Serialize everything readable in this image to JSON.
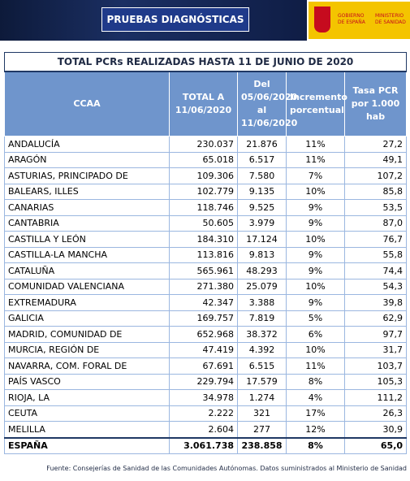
{
  "header": {
    "title": "PRUEBAS DIAGNÓSTICAS",
    "logo_left": "GOBIERNO DE ESPAÑA",
    "logo_right": "MINISTERIO DE SANIDAD"
  },
  "table": {
    "title": "TOTAL PCRs REALIZADAS HASTA 11 DE JUNIO DE 2020",
    "columns": [
      "CCAA",
      "TOTAL A 11/06/2020",
      "Del 05/06/2020 al 11/06/2020",
      "Incremento porcentual",
      "Tasa PCR por 1.000 hab"
    ],
    "rows": [
      [
        "ANDALUCÍA",
        "230.037",
        "21.876",
        "11%",
        "27,2"
      ],
      [
        "ARAGÓN",
        "65.018",
        "6.517",
        "11%",
        "49,1"
      ],
      [
        "ASTURIAS, PRINCIPADO DE",
        "109.306",
        "7.580",
        "7%",
        "107,2"
      ],
      [
        "BALEARS, ILLES",
        "102.779",
        "9.135",
        "10%",
        "85,8"
      ],
      [
        "CANARIAS",
        "118.746",
        "9.525",
        "9%",
        "53,5"
      ],
      [
        "CANTABRIA",
        "50.605",
        "3.979",
        "9%",
        "87,0"
      ],
      [
        "CASTILLA Y LEÓN",
        "184.310",
        "17.124",
        "10%",
        "76,7"
      ],
      [
        "CASTILLA-LA MANCHA",
        "113.816",
        "9.813",
        "9%",
        "55,8"
      ],
      [
        "CATALUÑA",
        "565.961",
        "48.293",
        "9%",
        "74,4"
      ],
      [
        "COMUNIDAD VALENCIANA",
        "271.380",
        "25.079",
        "10%",
        "54,3"
      ],
      [
        "EXTREMADURA",
        "42.347",
        "3.388",
        "9%",
        "39,8"
      ],
      [
        "GALICIA",
        "169.757",
        "7.819",
        "5%",
        "62,9"
      ],
      [
        "MADRID, COMUNIDAD DE",
        "652.968",
        "38.372",
        "6%",
        "97,7"
      ],
      [
        "MURCIA, REGIÓN DE",
        "47.419",
        "4.392",
        "10%",
        "31,7"
      ],
      [
        "NAVARRA, COM. FORAL DE",
        "67.691",
        "6.515",
        "11%",
        "103,7"
      ],
      [
        "PAÍS VASCO",
        "229.794",
        "17.579",
        "8%",
        "105,3"
      ],
      [
        "RIOJA, LA",
        "34.978",
        "1.274",
        "4%",
        "111,2"
      ],
      [
        "CEUTA",
        "2.222",
        "321",
        "17%",
        "26,3"
      ],
      [
        "MELILLA",
        "2.604",
        "277",
        "12%",
        "30,9"
      ]
    ],
    "total": [
      "ESPAÑA",
      "3.061.738",
      "238.858",
      "8%",
      "65,0"
    ]
  },
  "footnote": "Fuente: Consejerías de Sanidad de las Comunidades Autónomas. Datos suministrados al Ministerio de Sanidad"
}
